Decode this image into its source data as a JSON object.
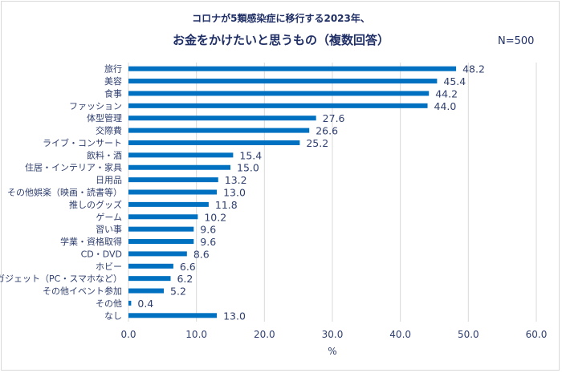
{
  "chart_data": {
    "type": "bar",
    "orientation": "horizontal",
    "title_line1": "コロナが5類感染症に移行する2023年、",
    "title_line2": "お金をかけたいと思うもの（複数回答）",
    "note": "N=500",
    "xlabel": "%",
    "ylabel": "",
    "xlim": [
      0,
      60
    ],
    "xticks": [
      "0.0",
      "10.0",
      "20.0",
      "30.0",
      "40.0",
      "50.0",
      "60.0"
    ],
    "grid": true,
    "bar_color": "#0070C0",
    "categories": [
      "旅行",
      "美容",
      "食事",
      "ファッション",
      "体型管理",
      "交際費",
      "ライブ・コンサート",
      "飲料・酒",
      "住居・インテリア・家具",
      "日用品",
      "その他娯楽（映画・読書等）",
      "推しのグッズ",
      "ゲーム",
      "習い事",
      "学業・資格取得",
      "CD・DVD",
      "ホビー",
      "ガジェット（PC・スマホなど）",
      "その他イベント参加",
      "その他",
      "なし"
    ],
    "values": [
      48.2,
      45.4,
      44.2,
      44.0,
      27.6,
      26.6,
      25.2,
      15.4,
      15.0,
      13.2,
      13.0,
      11.8,
      10.2,
      9.6,
      9.6,
      8.6,
      6.6,
      6.2,
      5.2,
      0.4,
      13.0
    ],
    "value_labels": [
      "48.2",
      "45.4",
      "44.2",
      "44.0",
      "27.6",
      "26.6",
      "25.2",
      "15.4",
      "15.0",
      "13.2",
      "13.0",
      "11.8",
      "10.2",
      "9.6",
      "9.6",
      "8.6",
      "6.6",
      "6.2",
      "5.2",
      "0.4",
      "13.0"
    ]
  }
}
